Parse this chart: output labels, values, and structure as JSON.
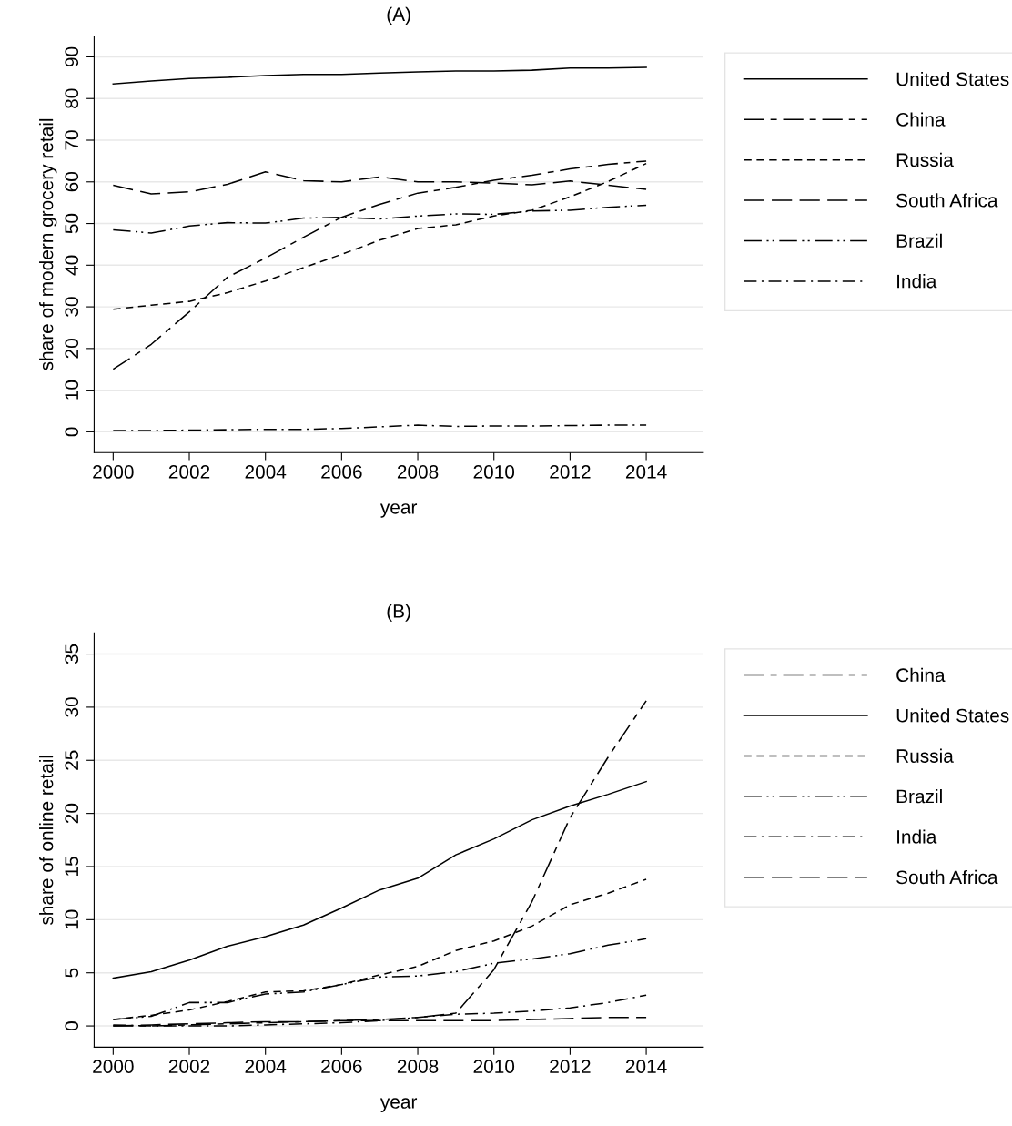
{
  "chart_data": [
    {
      "type": "line",
      "title": "(A)",
      "xlabel": "year",
      "ylabel": "share of modern grocery retail",
      "x": [
        2000,
        2001,
        2002,
        2003,
        2004,
        2005,
        2006,
        2007,
        2008,
        2009,
        2010,
        2011,
        2012,
        2013,
        2014
      ],
      "xlim": [
        1999.5,
        2015.5
      ],
      "xticks": [
        2000,
        2002,
        2004,
        2006,
        2008,
        2010,
        2012,
        2014
      ],
      "ylim": [
        -5,
        95
      ],
      "yticks": [
        0,
        10,
        20,
        30,
        40,
        50,
        60,
        70,
        80,
        90
      ],
      "grid": "y",
      "legend": "right",
      "marker": "none",
      "series": [
        {
          "name": "United States",
          "color": "#000000",
          "line_style": "solid",
          "values": [
            83.5,
            84.2,
            84.8,
            85.1,
            85.5,
            85.8,
            85.8,
            86.1,
            86.4,
            86.6,
            86.6,
            86.8,
            87.3,
            87.3,
            87.5
          ]
        },
        {
          "name": "China",
          "color": "#000000",
          "line_style": "longdashdash",
          "values": [
            15.0,
            21.0,
            28.8,
            37.1,
            41.7,
            46.7,
            51.5,
            54.6,
            57.3,
            58.7,
            60.4,
            61.6,
            63.1,
            64.2,
            65.0
          ]
        },
        {
          "name": "Russia",
          "color": "#000000",
          "line_style": "dashed",
          "values": [
            29.4,
            30.4,
            31.3,
            33.4,
            36.2,
            39.4,
            42.6,
            46.0,
            48.8,
            49.7,
            51.8,
            53.2,
            56.4,
            60.1,
            64.4
          ]
        },
        {
          "name": "South Africa",
          "color": "#000000",
          "line_style": "longdash",
          "values": [
            59.2,
            57.1,
            57.6,
            59.4,
            62.4,
            60.3,
            60.0,
            61.2,
            60.0,
            60.0,
            59.7,
            59.3,
            60.2,
            59.2,
            58.2
          ]
        },
        {
          "name": "Brazil",
          "color": "#000000",
          "line_style": "dashdotdot",
          "values": [
            48.5,
            47.7,
            49.4,
            50.2,
            50.1,
            51.3,
            51.5,
            51.1,
            51.8,
            52.3,
            52.2,
            53.0,
            53.2,
            53.9,
            54.4
          ]
        },
        {
          "name": "India",
          "color": "#000000",
          "line_style": "dashdot",
          "values": [
            0.3,
            0.3,
            0.4,
            0.5,
            0.6,
            0.6,
            0.8,
            1.2,
            1.6,
            1.3,
            1.4,
            1.4,
            1.5,
            1.6,
            1.6
          ]
        }
      ]
    },
    {
      "type": "line",
      "title": "(B)",
      "xlabel": "year",
      "ylabel": "share of online retail",
      "x": [
        2000,
        2001,
        2002,
        2003,
        2004,
        2005,
        2006,
        2007,
        2008,
        2009,
        2010,
        2011,
        2012,
        2013,
        2014
      ],
      "xlim": [
        1999.5,
        2015.5
      ],
      "xticks": [
        2000,
        2002,
        2004,
        2006,
        2008,
        2010,
        2012,
        2014
      ],
      "ylim": [
        -2,
        37
      ],
      "yticks": [
        0,
        5,
        10,
        15,
        20,
        25,
        30,
        35
      ],
      "grid": "y",
      "legend": "right",
      "marker": "none",
      "series": [
        {
          "name": "China",
          "color": "#000000",
          "line_style": "longdashdash",
          "values": [
            0.0,
            0.0,
            0.1,
            0.2,
            0.3,
            0.4,
            0.5,
            0.6,
            0.8,
            1.2,
            5.3,
            11.7,
            19.6,
            25.3,
            30.6
          ]
        },
        {
          "name": "United States",
          "color": "#000000",
          "line_style": "solid",
          "values": [
            4.5,
            5.1,
            6.2,
            7.5,
            8.4,
            9.5,
            11.1,
            12.8,
            13.9,
            16.1,
            17.6,
            19.4,
            20.7,
            21.8,
            23.0
          ]
        },
        {
          "name": "Russia",
          "color": "#000000",
          "line_style": "dashed",
          "values": [
            0.6,
            1.0,
            1.5,
            2.3,
            3.2,
            3.3,
            3.9,
            4.8,
            5.6,
            7.1,
            8.0,
            9.4,
            11.4,
            12.5,
            13.8
          ]
        },
        {
          "name": "Brazil",
          "color": "#000000",
          "line_style": "dashdotdot",
          "values": [
            0.6,
            0.9,
            2.2,
            2.2,
            3.0,
            3.2,
            3.9,
            4.6,
            4.7,
            5.1,
            5.9,
            6.3,
            6.8,
            7.6,
            8.2
          ]
        },
        {
          "name": "India",
          "color": "#000000",
          "line_style": "dashdot",
          "values": [
            0.1,
            0.0,
            0.0,
            0.0,
            0.1,
            0.2,
            0.3,
            0.5,
            0.8,
            1.1,
            1.2,
            1.4,
            1.7,
            2.2,
            2.9
          ]
        },
        {
          "name": "South Africa",
          "color": "#000000",
          "line_style": "longdash",
          "values": [
            0.0,
            0.1,
            0.2,
            0.3,
            0.4,
            0.4,
            0.5,
            0.5,
            0.5,
            0.5,
            0.5,
            0.6,
            0.7,
            0.8,
            0.8
          ]
        }
      ]
    }
  ]
}
